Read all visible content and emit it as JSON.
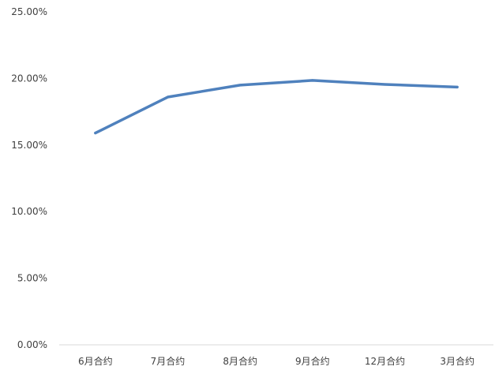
{
  "chart_data": {
    "type": "line",
    "title": "",
    "xlabel": "",
    "ylabel": "",
    "categories": [
      "6月合约",
      "7月合约",
      "8月合约",
      "9月合约",
      "12月合约",
      "3月合约"
    ],
    "series": [
      {
        "values": [
          15.9,
          18.6,
          19.5,
          19.85,
          19.55,
          19.35
        ],
        "color": "#4F81BD"
      }
    ],
    "ylim": [
      0,
      25
    ],
    "yticks": [
      0,
      5,
      10,
      15,
      20,
      25
    ],
    "ytick_labels": [
      "0.00%",
      "5.00%",
      "10.00%",
      "15.00%",
      "20.00%",
      "25.00%"
    ],
    "grid": false,
    "legend": "none",
    "axis_color": "#D9D9D9",
    "text_color": "#404040"
  }
}
